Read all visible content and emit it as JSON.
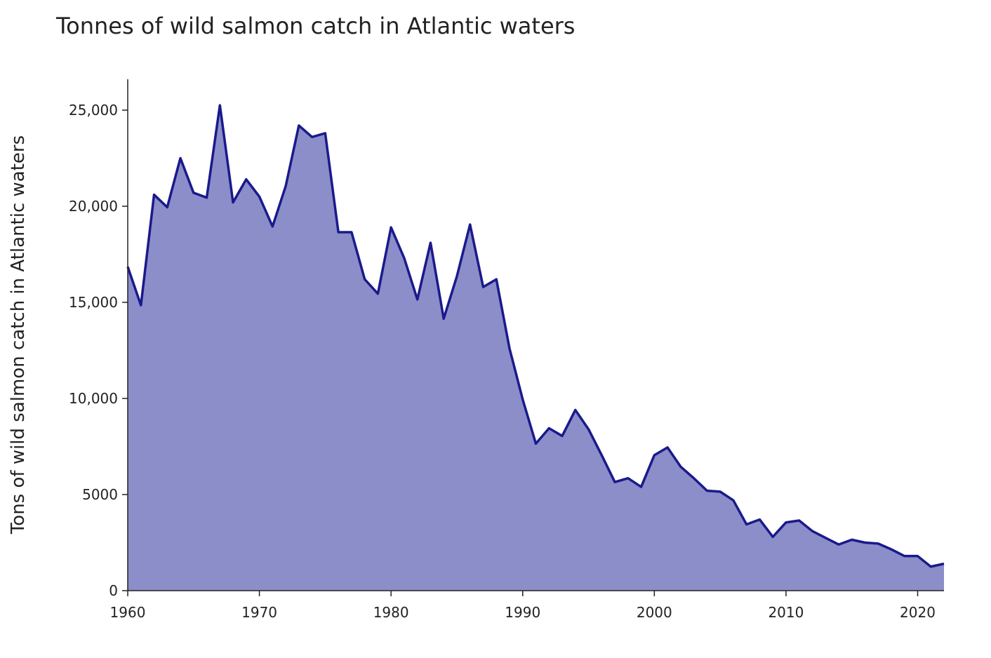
{
  "chart_data": {
    "type": "area",
    "title": "Tonnes of wild salmon catch in Atlantic waters",
    "xlabel": "",
    "ylabel": "Tons of wild salmon catch in Atlantic waters",
    "xlim": [
      1960,
      2022
    ],
    "ylim": [
      0,
      26600
    ],
    "x_ticks": [
      1960,
      1970,
      1980,
      1990,
      2000,
      2010,
      2020
    ],
    "y_ticks": [
      0,
      5000,
      10000,
      15000,
      20000,
      25000
    ],
    "y_tick_labels": [
      "0",
      "5000",
      "10,000",
      "15,000",
      "20,000",
      "25,000"
    ],
    "grid": false,
    "colors": {
      "line": "#1a1a8c",
      "fill": "#8b8ec8"
    },
    "x": [
      1960,
      1961,
      1962,
      1963,
      1964,
      1965,
      1966,
      1967,
      1968,
      1969,
      1970,
      1971,
      1972,
      1973,
      1974,
      1975,
      1976,
      1977,
      1978,
      1979,
      1980,
      1981,
      1982,
      1983,
      1984,
      1985,
      1986,
      1987,
      1988,
      1989,
      1990,
      1991,
      1992,
      1993,
      1994,
      1995,
      1996,
      1997,
      1998,
      1999,
      2000,
      2001,
      2002,
      2003,
      2004,
      2005,
      2006,
      2007,
      2008,
      2009,
      2010,
      2011,
      2012,
      2013,
      2014,
      2015,
      2016,
      2017,
      2018,
      2019,
      2020,
      2021,
      2022
    ],
    "series": [
      {
        "values": [
          16850,
          14850,
          20600,
          19950,
          22500,
          20700,
          20450,
          25250,
          20200,
          21400,
          20500,
          18950,
          21050,
          24200,
          23600,
          23800,
          18650,
          18650,
          16200,
          15450,
          18900,
          17300,
          15150,
          18100,
          14150,
          16350,
          19050,
          15800,
          16200,
          12600,
          9950,
          7650,
          8450,
          8050,
          9400,
          8400,
          7050,
          5650,
          5850,
          5400,
          7050,
          7450,
          6450,
          5850,
          5200,
          5150,
          4700,
          3450,
          3700,
          2800,
          3550,
          3650,
          3100,
          2750,
          2400,
          2650,
          2500,
          2450,
          2150,
          1800,
          1800,
          1250,
          1400
        ]
      }
    ]
  }
}
